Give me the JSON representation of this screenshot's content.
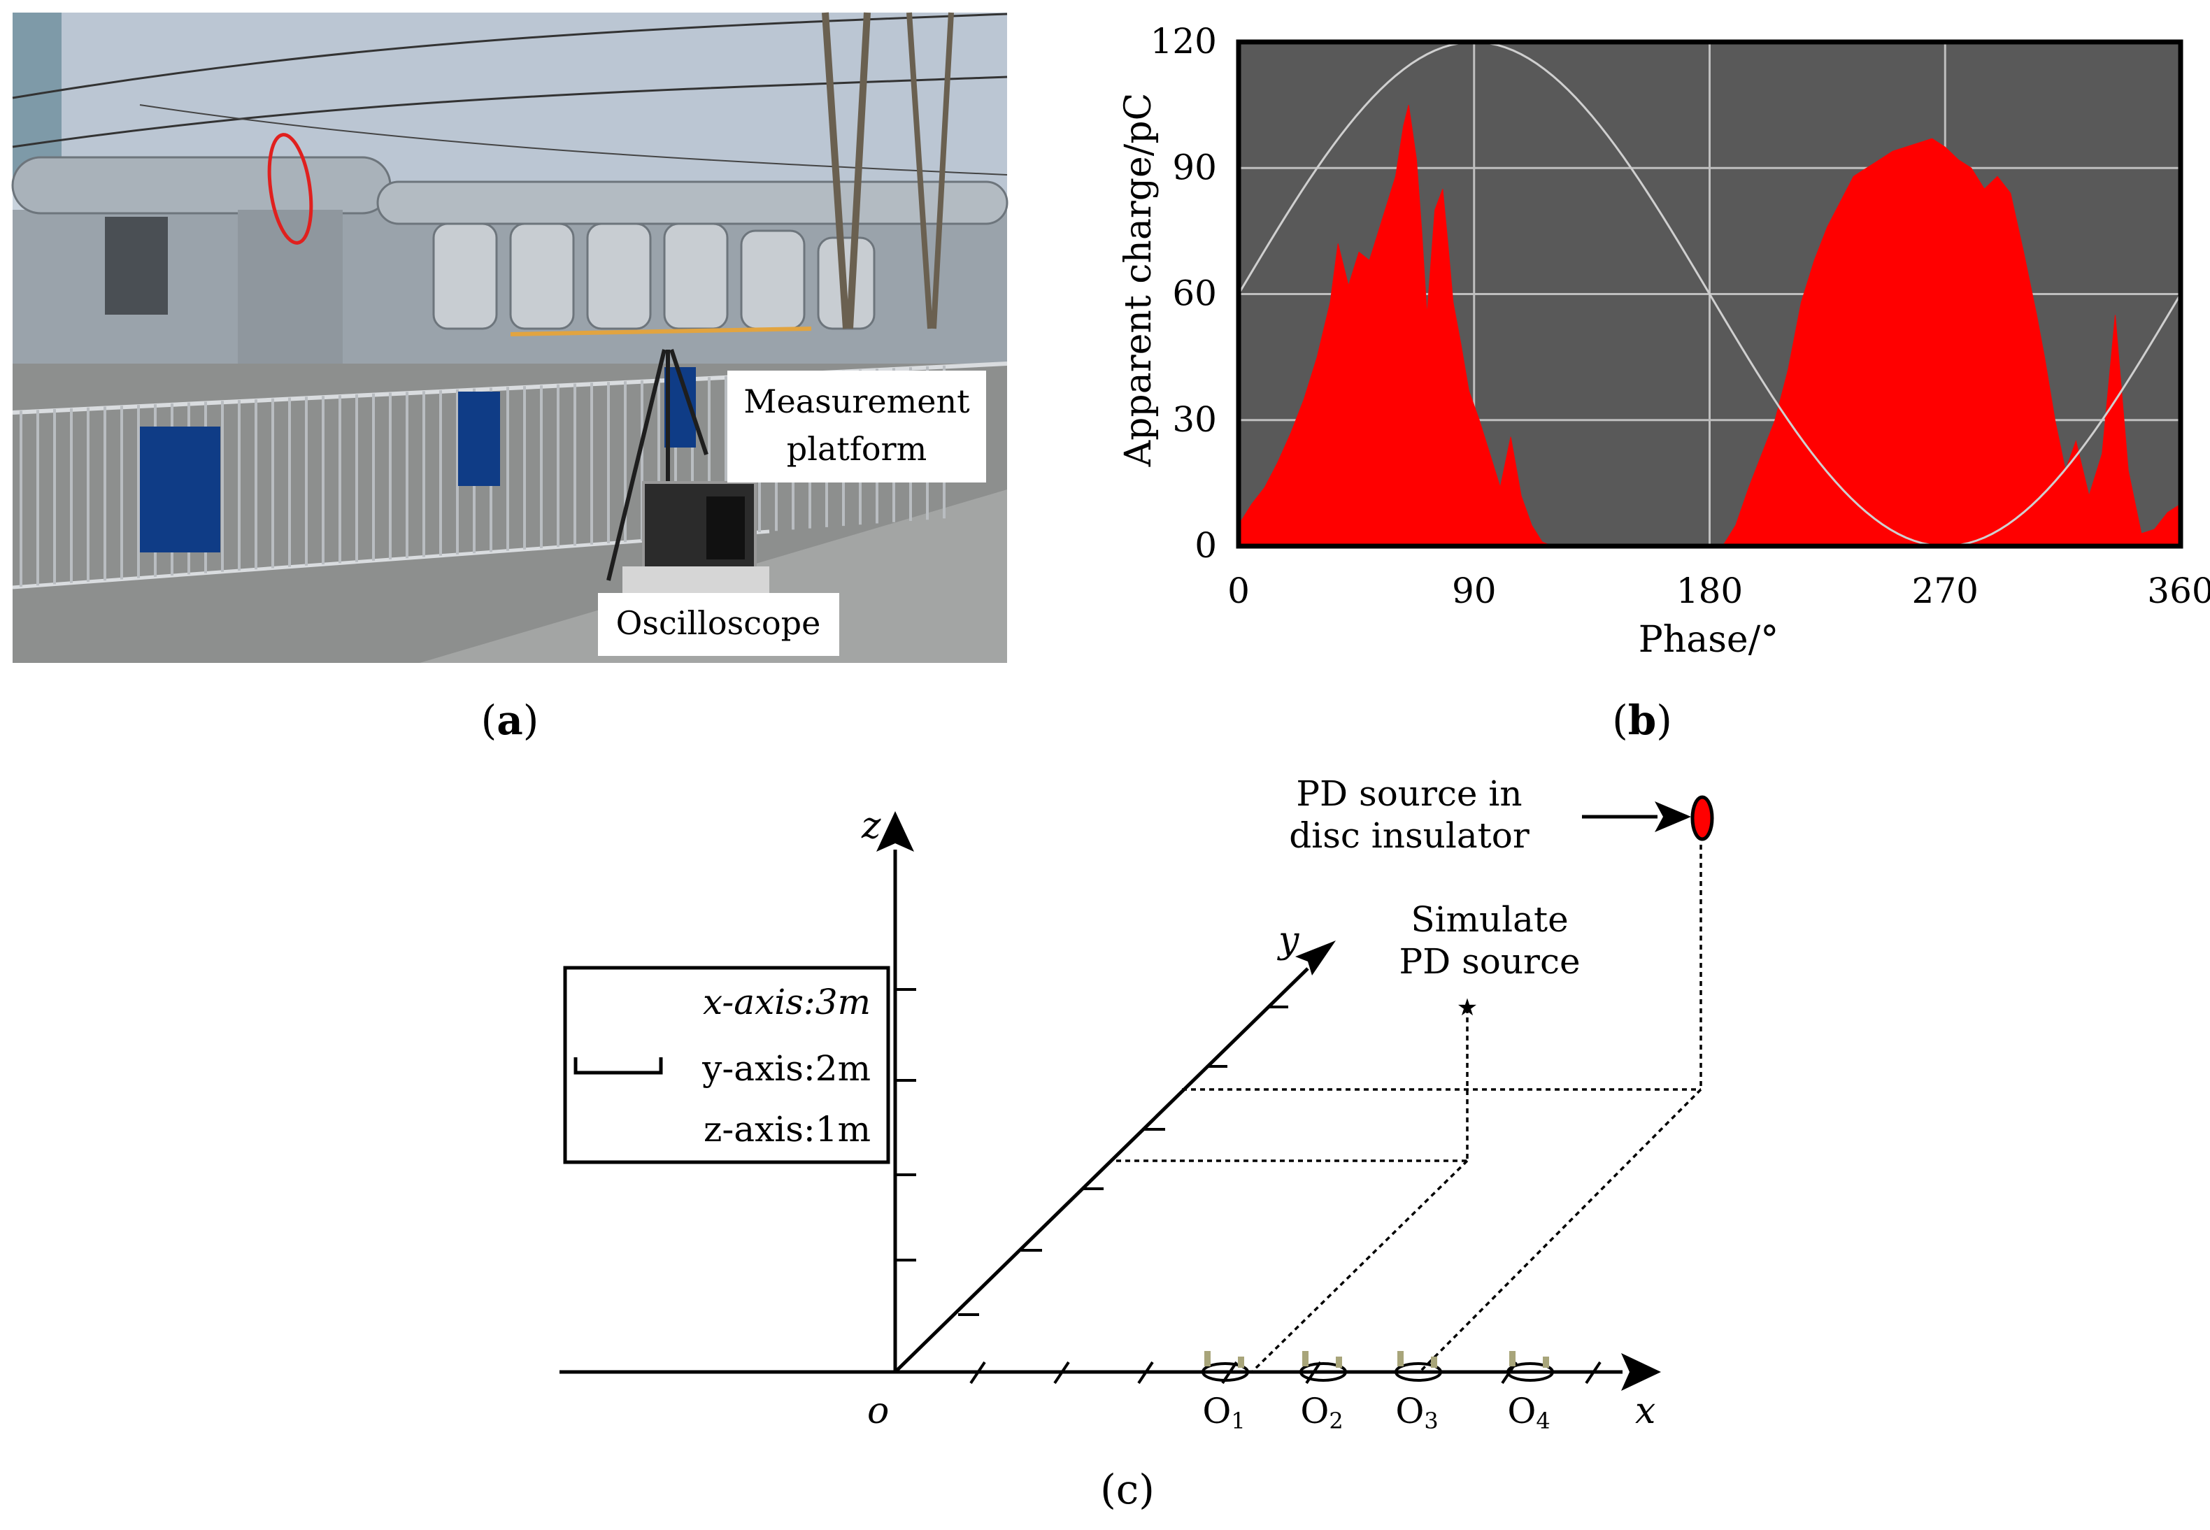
{
  "panel_a": {
    "label_open": "(",
    "label_letter": "a",
    "label_close": ")",
    "callouts": {
      "measurement_line1": "Measurement",
      "measurement_line2": "platform",
      "oscilloscope": "Oscilloscope"
    }
  },
  "panel_b": {
    "label_open": "(",
    "label_letter": "b",
    "label_close": ")"
  },
  "panel_c": {
    "label": "(c)",
    "axes": {
      "z": "z",
      "y": "y",
      "x": "x",
      "origin": "o"
    },
    "legend": {
      "x_axis": "x-axis:3m",
      "y_axis": "y-axis:2m",
      "z_axis": "z-axis:1m"
    },
    "pd_disc_line1": "PD source in",
    "pd_disc_line2": "disc insulator",
    "sim_line1": "Simulate",
    "sim_line2": "PD source",
    "sensors": [
      "O1",
      "O2",
      "O3",
      "O4"
    ]
  },
  "colors": {
    "pd_fill": "#ff0000",
    "plot_bg": "#595959",
    "grid": "#bfbfbf"
  },
  "chart_data": {
    "type": "area",
    "title": "",
    "xlabel": "Phase/°",
    "ylabel": "Apparent charge/pC",
    "xlim": [
      0,
      360
    ],
    "ylim": [
      0,
      120
    ],
    "xticks": [
      0,
      90,
      180,
      270,
      360
    ],
    "yticks": [
      0,
      30,
      60,
      90,
      120
    ],
    "grid": true,
    "reference_sine": {
      "offset": 60,
      "amplitude": 60,
      "period_deg": 360
    },
    "series": [
      {
        "x": [
          0,
          5,
          10,
          15,
          20,
          25,
          30,
          35,
          38,
          42,
          46,
          50,
          55,
          60,
          63,
          65,
          68,
          70,
          72,
          75,
          78,
          80,
          82,
          85,
          88,
          92,
          96,
          100,
          104,
          108,
          112,
          116,
          120,
          125,
          130,
          140,
          150,
          160,
          170,
          175,
          180,
          185,
          190,
          195,
          200,
          205,
          210,
          215,
          220,
          225,
          230,
          235,
          240,
          245,
          250,
          255,
          260,
          265,
          270,
          275,
          280,
          285,
          290,
          295,
          300,
          305,
          308,
          312,
          316,
          320,
          325,
          330,
          335,
          340,
          345,
          350,
          355,
          360
        ],
        "y": [
          5,
          10,
          14,
          20,
          27,
          35,
          45,
          58,
          72,
          62,
          70,
          68,
          78,
          88,
          100,
          105,
          92,
          75,
          55,
          80,
          85,
          72,
          58,
          48,
          37,
          30,
          22,
          14,
          26,
          12,
          5,
          1,
          0,
          0,
          0,
          0,
          0,
          0,
          0,
          0,
          0,
          0,
          5,
          14,
          22,
          30,
          42,
          58,
          68,
          76,
          82,
          88,
          90,
          92,
          94,
          95,
          96,
          97,
          95,
          92,
          90,
          85,
          88,
          84,
          70,
          55,
          45,
          30,
          18,
          25,
          12,
          22,
          55,
          18,
          3,
          4,
          8,
          10
        ]
      }
    ]
  }
}
